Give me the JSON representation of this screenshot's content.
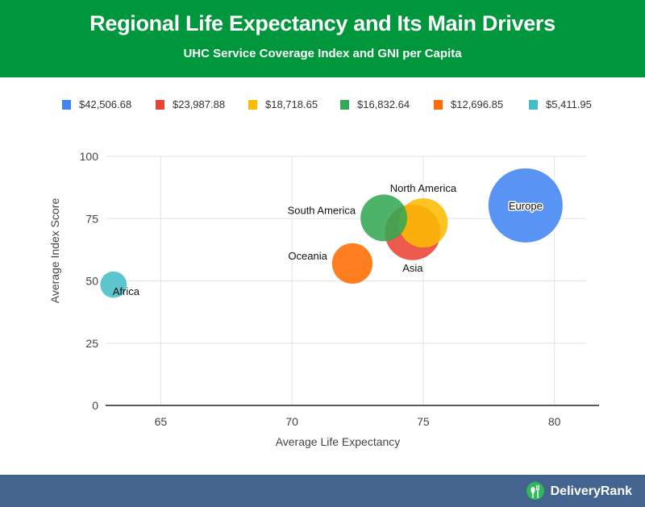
{
  "header": {
    "title": "Regional Life Expectancy and Its Main Drivers",
    "subtitle": "UHC Service Coverage Index and GNI per Capita"
  },
  "footer": {
    "brand_name": "DeliveryRank",
    "brand_icon": "fork-knife-pin-icon"
  },
  "chart_data": {
    "type": "scatter",
    "subtype": "bubble",
    "title": "Regional Life Expectancy and Its Main Drivers",
    "subtitle": "UHC Service Coverage Index and GNI per Capita",
    "xlabel": "Average Life Expectancy",
    "ylabel": "Average Index Score",
    "xlim": [
      62.9,
      81.7
    ],
    "ylim": [
      0,
      100
    ],
    "xticks": [
      65,
      70,
      75,
      80
    ],
    "yticks": [
      0,
      25,
      50,
      75,
      100
    ],
    "grid": true,
    "legend_position": "top",
    "size_variable": "GNI per Capita",
    "series": [
      {
        "name": "$42,506.68",
        "label": "Europe",
        "color": "#4285f4",
        "x": 78.9,
        "y": 80.3,
        "size": 42506.68,
        "label_position": "center",
        "label_halo": true
      },
      {
        "name": "$23,987.88",
        "label": "Asia",
        "color": "#ea4335",
        "x": 74.6,
        "y": 69.5,
        "size": 23987.88,
        "label_position": "bottom"
      },
      {
        "name": "$18,718.65",
        "label": "North America",
        "color": "#fbbc04",
        "x": 75.0,
        "y": 73.3,
        "size": 18718.65,
        "label_position": "top"
      },
      {
        "name": "$16,832.64",
        "label": "South America",
        "color": "#34a853",
        "x": 73.5,
        "y": 75.3,
        "size": 16832.64,
        "label_position": "left"
      },
      {
        "name": "$12,696.85",
        "label": "Oceania",
        "color": "#ff6d01",
        "x": 72.3,
        "y": 57.0,
        "size": 12696.85,
        "label_position": "left"
      },
      {
        "name": "$5,411.95",
        "label": "Africa",
        "color": "#46bdc6",
        "x": 63.2,
        "y": 48.5,
        "size": 5411.95,
        "label_position": "bottom-right"
      }
    ]
  }
}
